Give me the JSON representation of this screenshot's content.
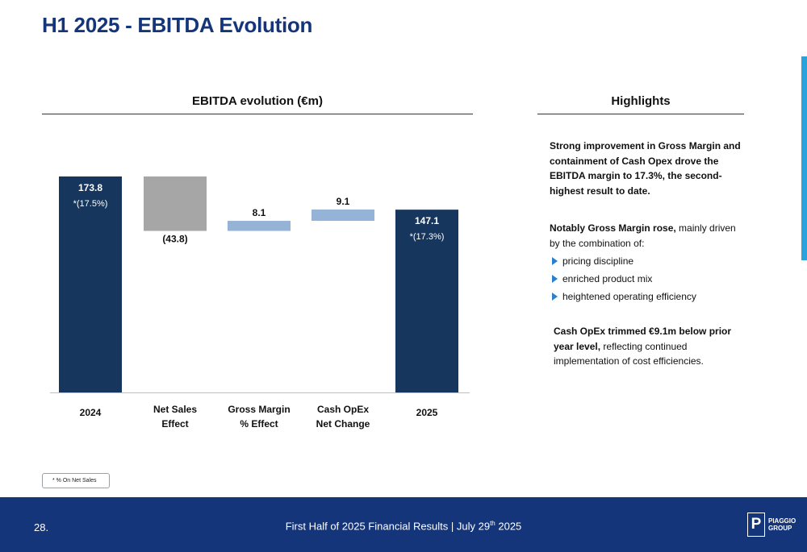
{
  "page": {
    "title": "H1 2025 - EBITDA Evolution",
    "chart_heading": "EBITDA evolution (€m)",
    "highlights_heading": "Highlights",
    "footnote": "* % On Net Sales"
  },
  "chart_data": {
    "type": "bar",
    "title": "EBITDA evolution (€m)",
    "categories": [
      "2024",
      "Net Sales Effect",
      "Gross Margin % Effect",
      "Cash OpEx Net Change",
      "2025"
    ],
    "category_lines": [
      [
        "2024"
      ],
      [
        "Net Sales",
        "Effect"
      ],
      [
        "Gross Margin",
        "% Effect"
      ],
      [
        "Cash OpEx",
        "Net Change"
      ],
      [
        "2025"
      ]
    ],
    "values": [
      173.8,
      -43.8,
      8.1,
      9.1,
      147.1
    ],
    "value_labels": [
      "173.8",
      "(43.8)",
      "8.1",
      "9.1",
      "147.1"
    ],
    "margin_labels": [
      "(17.5%)",
      "",
      "",
      "",
      "(17.3%)"
    ],
    "bar_kinds": [
      "total",
      "decrease",
      "increase",
      "increase",
      "total"
    ],
    "colors": {
      "total": "#17365d",
      "decrease": "#a6a6a6",
      "increase": "#95b3d7"
    },
    "ylim": [
      0,
      180
    ]
  },
  "highlights": {
    "p1": "Strong improvement in Gross Margin and containment of Cash Opex drove the EBITDA margin to 17.3%, the second-highest result to date.",
    "p2_bold": "Notably Gross Margin rose,",
    "p2_rest": " mainly driven by the combination of:",
    "bullets": [
      "pricing discipline",
      "enriched product mix",
      "heightened operating efficiency"
    ],
    "p3_bold": "Cash OpEx trimmed €9.1m below prior year level,",
    "p3_rest": " reflecting continued implementation of cost efficiencies."
  },
  "footer": {
    "page_number": "28.",
    "text_pre": "First Half of 2025 Financial Results | July 29",
    "text_sup": "th",
    "text_post": " 2025",
    "logo_mark": "P",
    "logo_line1": "PIAGGIO",
    "logo_line2": "GROUP"
  },
  "colors": {
    "title": "#15357a",
    "footer_bg": "#15357a",
    "accent": "#2aa3dc"
  }
}
